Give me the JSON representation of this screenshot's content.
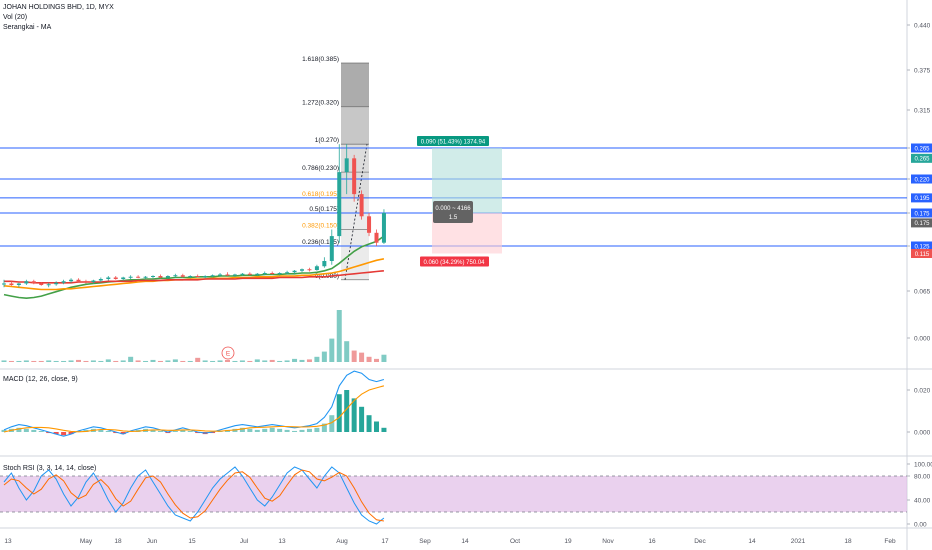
{
  "header": {
    "symbol": "JOHAN HOLDINGS BHD, 1D, MYX",
    "vol_label": "Vol (20)",
    "ma_label": "Serangkai - MA"
  },
  "colors": {
    "up": "#26a69a",
    "down": "#ef5350",
    "blue": "#2962ff",
    "orange": "#ff9800",
    "green": "#43a047",
    "red": "#e53935",
    "fib_dark": "#636363",
    "rsi_fill": "#e1bee7"
  },
  "chart_data": [
    {
      "type": "candlestick",
      "title": "JOHAN HOLDINGS BHD, 1D, MYX",
      "y_ticks": [
        "0.440",
        "0.375",
        "0.315",
        "0.265",
        "0.220",
        "0.175",
        "0.125",
        "0.065",
        "0.000"
      ],
      "x_ticks": [
        "13",
        "May",
        "18",
        "Jun",
        "15",
        "Jul",
        "13",
        "Aug",
        "17",
        "Sep",
        "14",
        "Oct",
        "19",
        "Nov",
        "16",
        "Dec",
        "14",
        "2021",
        "18",
        "Feb"
      ],
      "candles": [
        [
          0.075,
          0.08,
          0.07,
          0.075
        ],
        [
          0.075,
          0.078,
          0.072,
          0.073
        ],
        [
          0.073,
          0.076,
          0.07,
          0.075
        ],
        [
          0.075,
          0.08,
          0.073,
          0.078
        ],
        [
          0.078,
          0.08,
          0.074,
          0.075
        ],
        [
          0.075,
          0.077,
          0.072,
          0.073
        ],
        [
          0.073,
          0.076,
          0.07,
          0.074
        ],
        [
          0.074,
          0.078,
          0.072,
          0.076
        ],
        [
          0.076,
          0.08,
          0.074,
          0.078
        ],
        [
          0.078,
          0.082,
          0.076,
          0.08
        ],
        [
          0.08,
          0.082,
          0.077,
          0.078
        ],
        [
          0.078,
          0.08,
          0.075,
          0.077
        ],
        [
          0.077,
          0.08,
          0.075,
          0.079
        ],
        [
          0.079,
          0.083,
          0.077,
          0.081
        ],
        [
          0.081,
          0.085,
          0.079,
          0.083
        ],
        [
          0.083,
          0.085,
          0.08,
          0.081
        ],
        [
          0.081,
          0.084,
          0.079,
          0.083
        ],
        [
          0.083,
          0.086,
          0.081,
          0.084
        ],
        [
          0.084,
          0.086,
          0.082,
          0.083
        ],
        [
          0.083,
          0.085,
          0.081,
          0.084
        ],
        [
          0.084,
          0.086,
          0.082,
          0.085
        ],
        [
          0.085,
          0.087,
          0.082,
          0.083
        ],
        [
          0.083,
          0.086,
          0.081,
          0.085
        ],
        [
          0.085,
          0.088,
          0.083,
          0.086
        ],
        [
          0.086,
          0.088,
          0.083,
          0.084
        ],
        [
          0.084,
          0.086,
          0.082,
          0.085
        ],
        [
          0.085,
          0.087,
          0.083,
          0.084
        ],
        [
          0.084,
          0.086,
          0.082,
          0.085
        ],
        [
          0.085,
          0.087,
          0.083,
          0.086
        ],
        [
          0.086,
          0.089,
          0.084,
          0.087
        ],
        [
          0.087,
          0.09,
          0.085,
          0.086
        ],
        [
          0.086,
          0.088,
          0.084,
          0.087
        ],
        [
          0.087,
          0.089,
          0.085,
          0.088
        ],
        [
          0.088,
          0.09,
          0.086,
          0.087
        ],
        [
          0.087,
          0.089,
          0.085,
          0.088
        ],
        [
          0.088,
          0.091,
          0.086,
          0.089
        ],
        [
          0.089,
          0.091,
          0.087,
          0.088
        ],
        [
          0.088,
          0.09,
          0.086,
          0.089
        ],
        [
          0.089,
          0.092,
          0.087,
          0.09
        ],
        [
          0.09,
          0.093,
          0.088,
          0.092
        ],
        [
          0.092,
          0.095,
          0.09,
          0.094
        ],
        [
          0.094,
          0.096,
          0.091,
          0.093
        ],
        [
          0.093,
          0.1,
          0.092,
          0.098
        ],
        [
          0.098,
          0.11,
          0.096,
          0.105
        ],
        [
          0.105,
          0.15,
          0.1,
          0.14
        ],
        [
          0.14,
          0.27,
          0.13,
          0.23
        ],
        [
          0.23,
          0.27,
          0.2,
          0.25
        ],
        [
          0.25,
          0.255,
          0.19,
          0.2
        ],
        [
          0.2,
          0.205,
          0.165,
          0.17
        ],
        [
          0.17,
          0.175,
          0.14,
          0.145
        ],
        [
          0.145,
          0.15,
          0.125,
          0.13
        ],
        [
          0.13,
          0.18,
          0.128,
          0.175
        ]
      ],
      "volume": [
        0.03,
        0.02,
        0.02,
        0.03,
        0.02,
        0.02,
        0.03,
        0.02,
        0.02,
        0.03,
        0.04,
        0.02,
        0.03,
        0.02,
        0.05,
        0.02,
        0.03,
        0.1,
        0.03,
        0.02,
        0.04,
        0.02,
        0.03,
        0.05,
        0.02,
        0.02,
        0.08,
        0.03,
        0.02,
        0.03,
        0.04,
        0.02,
        0.03,
        0.02,
        0.05,
        0.03,
        0.04,
        0.02,
        0.03,
        0.06,
        0.04,
        0.05,
        0.1,
        0.2,
        0.45,
        1.0,
        0.4,
        0.22,
        0.18,
        0.1,
        0.06,
        0.14
      ],
      "ma_series": [
        {
          "color": "#43a047",
          "values": [
            0.06,
            0.058,
            0.056,
            0.055,
            0.056,
            0.058,
            0.061,
            0.064,
            0.067,
            0.07,
            0.072,
            0.074,
            0.075,
            0.076,
            0.077,
            0.078,
            0.079,
            0.08,
            0.08,
            0.081,
            0.081,
            0.082,
            0.082,
            0.083,
            0.083,
            0.083,
            0.084,
            0.084,
            0.084,
            0.085,
            0.085,
            0.085,
            0.086,
            0.086,
            0.086,
            0.087,
            0.087,
            0.087,
            0.088,
            0.088,
            0.089,
            0.089,
            0.09,
            0.092,
            0.095,
            0.102,
            0.11,
            0.118,
            0.124,
            0.128,
            0.132,
            0.14
          ]
        },
        {
          "color": "#ff9800",
          "values": [
            0.072,
            0.071,
            0.07,
            0.069,
            0.068,
            0.067,
            0.067,
            0.067,
            0.068,
            0.068,
            0.069,
            0.07,
            0.071,
            0.072,
            0.073,
            0.074,
            0.075,
            0.076,
            0.077,
            0.078,
            0.078,
            0.079,
            0.079,
            0.08,
            0.08,
            0.081,
            0.081,
            0.081,
            0.082,
            0.082,
            0.082,
            0.083,
            0.083,
            0.083,
            0.084,
            0.084,
            0.084,
            0.085,
            0.085,
            0.085,
            0.086,
            0.086,
            0.087,
            0.088,
            0.089,
            0.091,
            0.094,
            0.097,
            0.1,
            0.103,
            0.106,
            0.108
          ]
        },
        {
          "color": "#e53935",
          "values": [
            0.078,
            0.078,
            0.077,
            0.077,
            0.076,
            0.076,
            0.076,
            0.076,
            0.076,
            0.076,
            0.077,
            0.077,
            0.077,
            0.077,
            0.078,
            0.078,
            0.078,
            0.078,
            0.079,
            0.079,
            0.079,
            0.079,
            0.08,
            0.08,
            0.08,
            0.08,
            0.08,
            0.081,
            0.081,
            0.081,
            0.081,
            0.081,
            0.082,
            0.082,
            0.082,
            0.082,
            0.082,
            0.083,
            0.083,
            0.083,
            0.083,
            0.084,
            0.084,
            0.084,
            0.085,
            0.086,
            0.087,
            0.088,
            0.089,
            0.09,
            0.091,
            0.092
          ]
        }
      ]
    },
    {
      "type": "bar",
      "title": "MACD (12, 26, close, 9)",
      "y_ticks": [
        "0.020",
        "0.000"
      ],
      "histogram": [
        0.001,
        0.0015,
        0.002,
        0.0015,
        0.001,
        0.0005,
        -0.0005,
        -0.001,
        -0.0015,
        -0.001,
        0.0005,
        0.001,
        0.0015,
        0.001,
        0.0005,
        -0.0005,
        -0.001,
        0.0005,
        0.001,
        0.0015,
        0.001,
        0.0005,
        -0.0005,
        0.0005,
        0.001,
        0.0005,
        -0.0005,
        -0.001,
        -0.0005,
        0.0005,
        0.001,
        0.0015,
        0.002,
        0.0015,
        0.001,
        0.0015,
        0.002,
        0.0015,
        0.001,
        0.0005,
        0.001,
        0.0015,
        0.002,
        0.004,
        0.008,
        0.018,
        0.02,
        0.016,
        0.012,
        0.008,
        0.005,
        0.002
      ],
      "macd": [
        0.001,
        0.0025,
        0.0035,
        0.003,
        0.002,
        0.001,
        0.0,
        -0.001,
        -0.002,
        -0.001,
        0.0005,
        0.0015,
        0.0025,
        0.002,
        0.001,
        0.0,
        -0.001,
        0.0005,
        0.0015,
        0.0025,
        0.002,
        0.001,
        0.0,
        0.001,
        0.002,
        0.001,
        0.0,
        -0.0005,
        0.0,
        0.001,
        0.002,
        0.003,
        0.0035,
        0.003,
        0.0025,
        0.003,
        0.0035,
        0.003,
        0.0025,
        0.002,
        0.0025,
        0.003,
        0.004,
        0.007,
        0.012,
        0.022,
        0.027,
        0.029,
        0.028,
        0.025,
        0.024,
        0.025
      ],
      "signal": [
        0.0,
        0.0008,
        0.0015,
        0.002,
        0.0022,
        0.0022,
        0.002,
        0.0015,
        0.0008,
        0.0003,
        0.0001,
        0.0003,
        0.0008,
        0.0012,
        0.0012,
        0.001,
        0.0005,
        0.0003,
        0.0004,
        0.0008,
        0.001,
        0.001,
        0.0008,
        0.0008,
        0.001,
        0.001,
        0.0008,
        0.0005,
        0.0004,
        0.0004,
        0.0007,
        0.001,
        0.0015,
        0.002,
        0.0022,
        0.0023,
        0.0025,
        0.0026,
        0.0026,
        0.0025,
        0.0024,
        0.0025,
        0.0027,
        0.0033,
        0.0045,
        0.007,
        0.011,
        0.015,
        0.018,
        0.02,
        0.021,
        0.022
      ]
    },
    {
      "type": "line",
      "title": "Stoch RSI (3, 3, 14, 14, close)",
      "y_ticks": [
        "100.00",
        "80.00",
        "40.00",
        "0.00"
      ],
      "bands": [
        80,
        20
      ],
      "k": [
        70,
        85,
        60,
        40,
        55,
        80,
        90,
        75,
        50,
        30,
        45,
        70,
        85,
        65,
        40,
        20,
        35,
        60,
        80,
        90,
        70,
        50,
        30,
        15,
        10,
        5,
        20,
        40,
        60,
        75,
        85,
        95,
        80,
        60,
        40,
        30,
        45,
        65,
        85,
        95,
        90,
        75,
        60,
        80,
        95,
        85,
        60,
        35,
        15,
        5,
        0,
        10
      ],
      "d": [
        65,
        75,
        72,
        60,
        50,
        58,
        75,
        82,
        72,
        52,
        42,
        48,
        66,
        74,
        62,
        42,
        30,
        38,
        58,
        77,
        80,
        70,
        50,
        32,
        18,
        10,
        12,
        22,
        40,
        58,
        73,
        85,
        87,
        78,
        60,
        43,
        38,
        47,
        65,
        82,
        90,
        87,
        75,
        72,
        78,
        86,
        80,
        60,
        37,
        18,
        7,
        5
      ]
    }
  ],
  "fib": {
    "levels": [
      {
        "label": "1.618(0.385)",
        "price": 0.385,
        "color": "#131722"
      },
      {
        "label": "1.272(0.320)",
        "price": 0.32,
        "color": "#131722"
      },
      {
        "label": "1(0.270)",
        "price": 0.27,
        "color": "#131722"
      },
      {
        "label": "0.786(0.230)",
        "price": 0.23,
        "color": "#131722"
      },
      {
        "label": "0.618(0.195)",
        "price": 0.195,
        "color": "#ff9800"
      },
      {
        "label": "0.5(0.175)",
        "price": 0.175,
        "color": "#131722"
      },
      {
        "label": "0.382(0.150)",
        "price": 0.15,
        "color": "#ff9800"
      },
      {
        "label": "0.236(0.125)",
        "price": 0.125,
        "color": "#131722"
      },
      {
        "label": "0(0.080)",
        "price": 0.08,
        "color": "#131722"
      }
    ]
  },
  "hlines": [
    0.265,
    0.22,
    0.195,
    0.175,
    0.125
  ],
  "position": {
    "entry": 0.175,
    "target": 0.265,
    "stop": 0.115,
    "target_label": "0.090 (51.43%) 1374.94",
    "entry_label_line1": "0.000 ~ 4166",
    "entry_label_line2": "1.5",
    "stop_label": "0.060 (34.29%) 750.04"
  },
  "price_tags": [
    {
      "text": "0.265",
      "price": 0.265,
      "color": "#2962ff"
    },
    {
      "text": "0.265",
      "price": 0.25,
      "color": "#26a69a"
    },
    {
      "text": "0.220",
      "price": 0.22,
      "color": "#2962ff"
    },
    {
      "text": "0.195",
      "price": 0.195,
      "color": "#2962ff"
    },
    {
      "text": "0.175",
      "price": 0.175,
      "color": "#2962ff"
    },
    {
      "text": "0.175",
      "price": 0.16,
      "color": "#636363"
    },
    {
      "text": "0.125",
      "price": 0.125,
      "color": "#2962ff"
    },
    {
      "text": "0.115",
      "price": 0.115,
      "color": "#ef5350"
    }
  ],
  "earnings_marker": "E"
}
